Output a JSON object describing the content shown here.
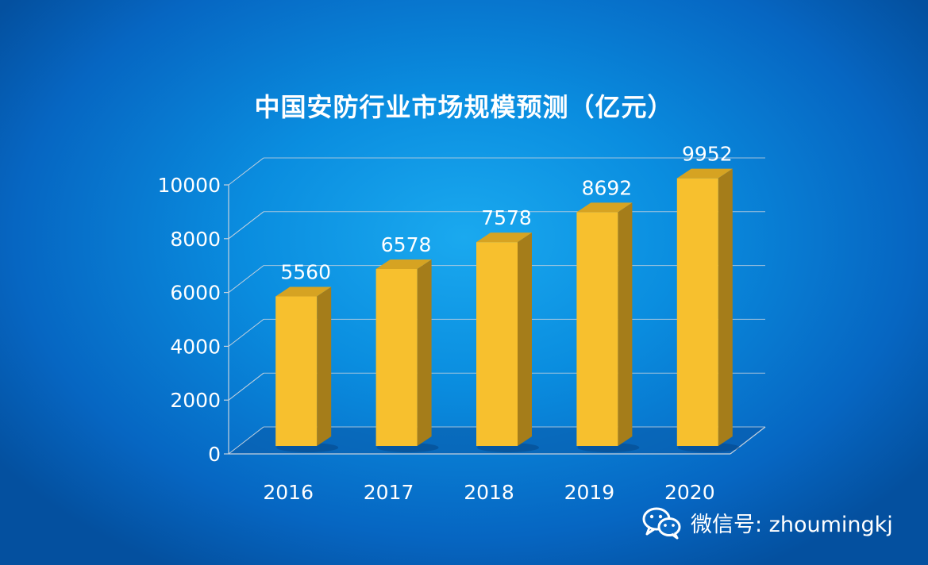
{
  "chart_data": {
    "type": "bar",
    "title": "中国安防行业市场规模预测（亿元）",
    "categories": [
      "2016",
      "2017",
      "2018",
      "2019",
      "2020"
    ],
    "values": [
      5560,
      6578,
      7578,
      8692,
      9952
    ],
    "ylim": [
      0,
      10000
    ],
    "yticks": [
      "0",
      "2000",
      "4000",
      "6000",
      "8000",
      "10000"
    ],
    "xlabel": "",
    "ylabel": "",
    "grid": true,
    "legend": "none",
    "bar_color": "#f7c02e",
    "bar_side_color": "#a57d1a",
    "bar_top_color": "#d6a322"
  },
  "watermark": {
    "icon": "wechat-icon",
    "text": "微信号: zhoumingkj"
  }
}
